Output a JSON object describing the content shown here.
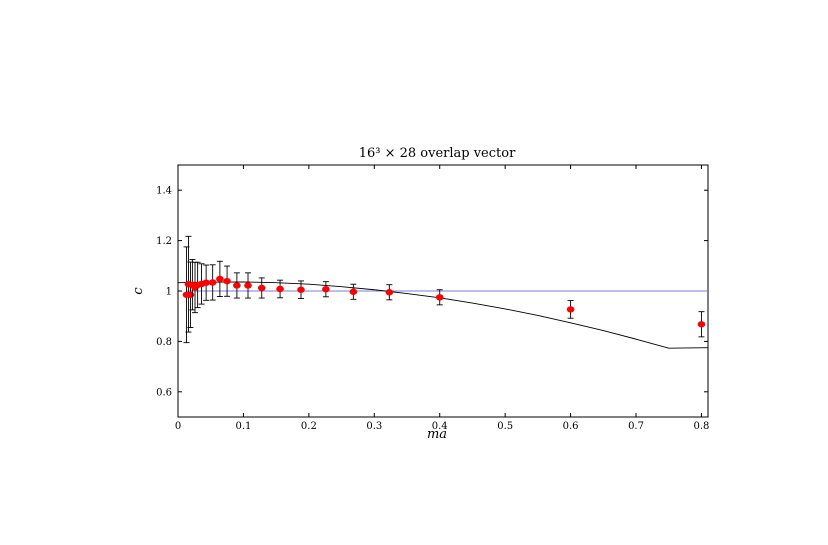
{
  "chart_data": {
    "type": "scatter",
    "title": "16³ × 28 overlap vector",
    "xlabel": "ma",
    "ylabel": "c",
    "xlim": [
      0,
      0.81
    ],
    "ylim": [
      0.5,
      1.5
    ],
    "x_ticks": [
      0,
      0.1,
      0.2,
      0.3,
      0.4,
      0.5,
      0.6,
      0.7,
      0.8
    ],
    "x_tick_labels": [
      "0",
      "0.1",
      "0.2",
      "0.3",
      "0.4",
      "0.5",
      "0.6",
      "0.7",
      "0.8"
    ],
    "y_ticks": [
      0.6,
      0.8,
      1.0,
      1.2,
      1.4
    ],
    "y_tick_labels": [
      "0.6",
      "0.8",
      "1",
      "1.2",
      "1.4"
    ],
    "grid": false,
    "legend": "none",
    "series": [
      {
        "kind": "points_with_errorbars",
        "color": "#ff0000",
        "points": [
          {
            "x": 0.013,
            "y": 0.985,
            "err": 0.19
          },
          {
            "x": 0.016,
            "y": 1.027,
            "err": 0.19
          },
          {
            "x": 0.019,
            "y": 0.985,
            "err": 0.13
          },
          {
            "x": 0.022,
            "y": 1.025,
            "err": 0.1
          },
          {
            "x": 0.026,
            "y": 1.014,
            "err": 0.1
          },
          {
            "x": 0.03,
            "y": 1.024,
            "err": 0.09
          },
          {
            "x": 0.036,
            "y": 1.028,
            "err": 0.08
          },
          {
            "x": 0.043,
            "y": 1.033,
            "err": 0.07
          },
          {
            "x": 0.053,
            "y": 1.034,
            "err": 0.07
          },
          {
            "x": 0.064,
            "y": 1.048,
            "err": 0.07
          },
          {
            "x": 0.075,
            "y": 1.039,
            "err": 0.06
          },
          {
            "x": 0.09,
            "y": 1.022,
            "err": 0.05
          },
          {
            "x": 0.107,
            "y": 1.022,
            "err": 0.05
          },
          {
            "x": 0.128,
            "y": 1.012,
            "err": 0.04
          },
          {
            "x": 0.156,
            "y": 1.008,
            "err": 0.035
          },
          {
            "x": 0.188,
            "y": 1.005,
            "err": 0.035
          },
          {
            "x": 0.226,
            "y": 1.007,
            "err": 0.03
          },
          {
            "x": 0.268,
            "y": 0.997,
            "err": 0.03
          },
          {
            "x": 0.323,
            "y": 0.995,
            "err": 0.03
          },
          {
            "x": 0.4,
            "y": 0.975,
            "err": 0.03
          },
          {
            "x": 0.6,
            "y": 0.927,
            "err": 0.035
          },
          {
            "x": 0.8,
            "y": 0.868,
            "err": 0.05
          }
        ]
      },
      {
        "kind": "fit_curve",
        "color": "#000000",
        "x": [
          0.0,
          0.05,
          0.1,
          0.15,
          0.2,
          0.25,
          0.3,
          0.35,
          0.4,
          0.45,
          0.5,
          0.55,
          0.6,
          0.65,
          0.7,
          0.75,
          0.81
        ],
        "y": [
          1.033,
          1.035,
          1.036,
          1.033,
          1.027,
          1.017,
          1.005,
          0.99,
          0.973,
          0.952,
          0.929,
          0.903,
          0.874,
          0.843,
          0.809,
          0.773,
          0.775
        ]
      },
      {
        "kind": "reference_line",
        "color": "#7b7bdc",
        "x": [
          0.013,
          0.81
        ],
        "y": [
          1.0,
          1.0
        ]
      }
    ]
  }
}
